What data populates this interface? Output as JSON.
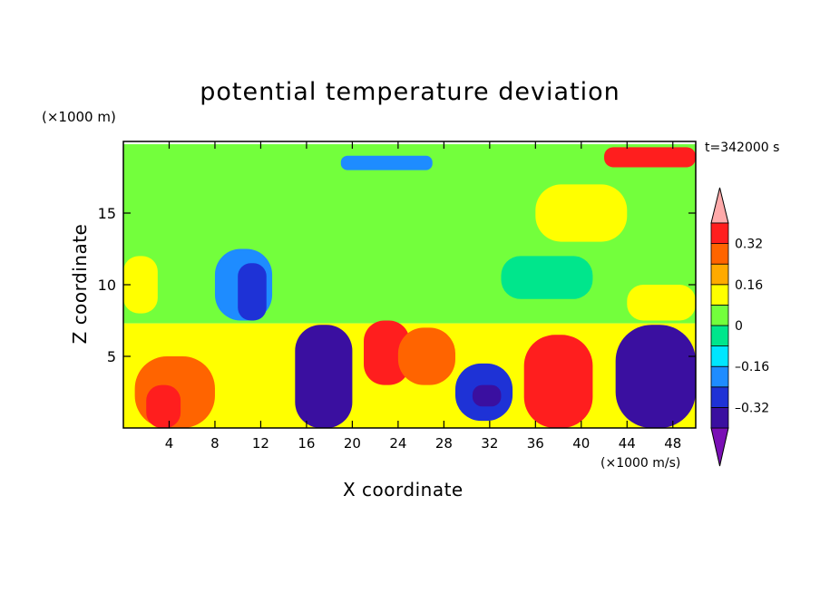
{
  "chart_data": {
    "type": "heatmap",
    "title": "potential temperature deviation",
    "xlabel": "X coordinate",
    "ylabel": "Z coordinate",
    "x_unit": "(×1000 m/s)",
    "y_unit": "(×1000 m)",
    "time_label": "t=342000 s",
    "xlim": [
      0,
      50
    ],
    "ylim": [
      0,
      20
    ],
    "x_ticks": [
      "4",
      "8",
      "12",
      "16",
      "20",
      "24",
      "28",
      "32",
      "36",
      "40",
      "44",
      "48"
    ],
    "x_tick_values": [
      4,
      8,
      12,
      16,
      20,
      24,
      28,
      32,
      36,
      40,
      44,
      48
    ],
    "y_ticks": [
      "5",
      "10",
      "15"
    ],
    "y_tick_values": [
      5,
      10,
      15
    ],
    "colorbar": {
      "levels": [
        -0.4,
        -0.32,
        -0.24,
        -0.16,
        -0.08,
        0,
        0.08,
        0.16,
        0.24,
        0.32,
        0.4
      ],
      "tick_labels": [
        "0.32",
        "0.16",
        "0",
        "–0.16",
        "–0.32"
      ],
      "tick_values": [
        0.32,
        0.16,
        0,
        -0.16,
        -0.32
      ],
      "colors": [
        "#7a0fb5",
        "#3a0fa0",
        "#1e32d6",
        "#1e8cff",
        "#00e6ff",
        "#00e68c",
        "#73ff3c",
        "#ffff00",
        "#ffaa00",
        "#ff6400",
        "#ff1e1e",
        "#ffaaaa"
      ]
    },
    "regions": [
      {
        "x": [
          0,
          50
        ],
        "y": [
          7.3,
          19.8
        ],
        "value": 0.04
      },
      {
        "x": [
          0,
          50
        ],
        "y": [
          0,
          7.3
        ],
        "value": 0.08
      },
      {
        "x": [
          0,
          50
        ],
        "y": [
          17.3,
          19.8
        ],
        "value": 0.0
      },
      {
        "x": [
          8,
          13
        ],
        "y": [
          7.5,
          12.5
        ],
        "value": -0.2
      },
      {
        "x": [
          10,
          12.5
        ],
        "y": [
          7.5,
          11.5
        ],
        "value": -0.28
      },
      {
        "x": [
          19,
          27
        ],
        "y": [
          18,
          19
        ],
        "value": -0.24
      },
      {
        "x": [
          36,
          44
        ],
        "y": [
          13,
          17
        ],
        "value": 0.12
      },
      {
        "x": [
          33,
          41
        ],
        "y": [
          9,
          12
        ],
        "value": -0.04
      },
      {
        "x": [
          44,
          50
        ],
        "y": [
          7.5,
          10
        ],
        "value": 0.14
      },
      {
        "x": [
          0,
          3
        ],
        "y": [
          8,
          12
        ],
        "value": 0.14
      },
      {
        "x": [
          15,
          20
        ],
        "y": [
          0,
          7.2
        ],
        "value": -0.38
      },
      {
        "x": [
          43,
          50
        ],
        "y": [
          0,
          7.2
        ],
        "value": -0.38
      },
      {
        "x": [
          29,
          34
        ],
        "y": [
          0.5,
          4.5
        ],
        "value": -0.32
      },
      {
        "x": [
          30.5,
          33
        ],
        "y": [
          1.5,
          3
        ],
        "value": -0.38
      },
      {
        "x": [
          1,
          8
        ],
        "y": [
          0,
          5
        ],
        "value": 0.3
      },
      {
        "x": [
          2,
          5
        ],
        "y": [
          0,
          3
        ],
        "value": 0.38
      },
      {
        "x": [
          35,
          41
        ],
        "y": [
          0,
          6.5
        ],
        "value": 0.36
      },
      {
        "x": [
          21,
          25
        ],
        "y": [
          3,
          7.5
        ],
        "value": 0.38
      },
      {
        "x": [
          24,
          29
        ],
        "y": [
          3,
          7
        ],
        "value": 0.3
      },
      {
        "x": [
          42,
          50
        ],
        "y": [
          18.2,
          19.6
        ],
        "value": 0.38
      }
    ]
  }
}
